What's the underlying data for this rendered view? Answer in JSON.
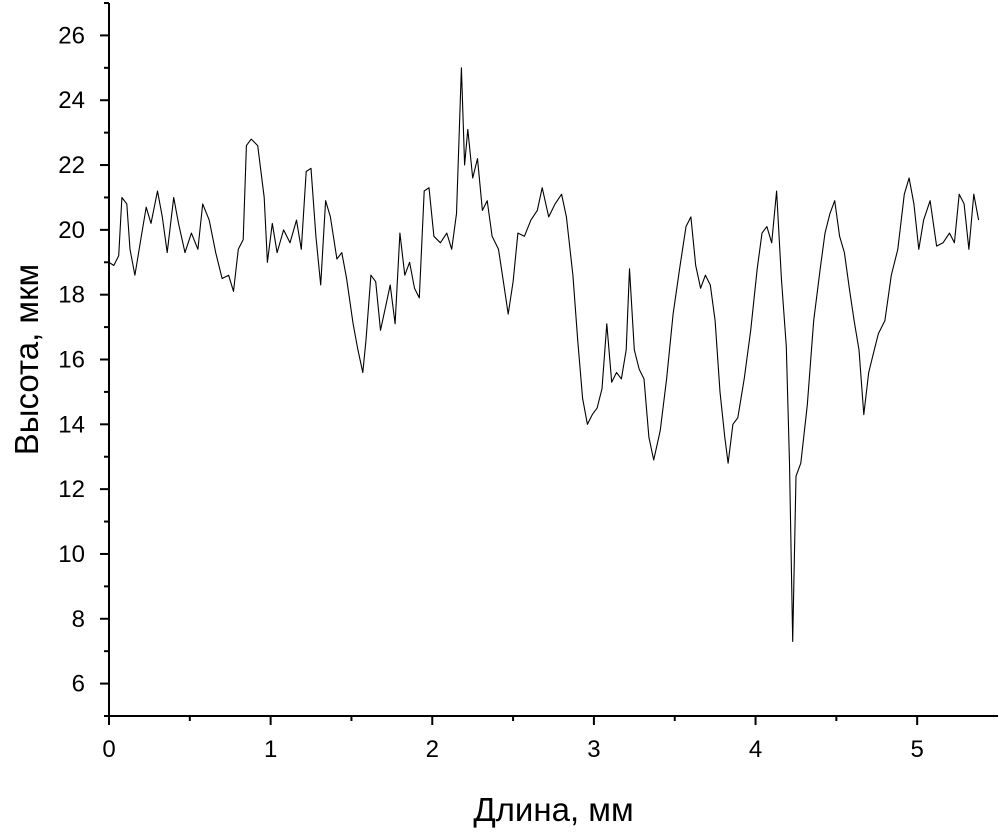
{
  "chart_data": {
    "type": "line",
    "title": "",
    "xlabel": "Длина, мм",
    "ylabel": "Высота, мкм",
    "xlim": [
      0,
      5.5
    ],
    "ylim": [
      5,
      27
    ],
    "x_ticks": [
      0,
      1,
      2,
      3,
      4,
      5
    ],
    "x_tick_labels": [
      "0",
      "1",
      "2",
      "3",
      "4",
      "5"
    ],
    "y_ticks": [
      6,
      8,
      10,
      12,
      14,
      16,
      18,
      20,
      22,
      24,
      26
    ],
    "y_tick_labels": [
      "6",
      "8",
      "10",
      "12",
      "14",
      "16",
      "18",
      "20",
      "22",
      "24",
      "26"
    ],
    "grid": false,
    "legend": "none",
    "line_color": "#000000",
    "series": [
      {
        "values": [
          [
            0.0,
            19.0
          ],
          [
            0.03,
            18.9
          ],
          [
            0.06,
            19.2
          ],
          [
            0.08,
            21.0
          ],
          [
            0.11,
            20.8
          ],
          [
            0.13,
            19.4
          ],
          [
            0.16,
            18.6
          ],
          [
            0.2,
            19.8
          ],
          [
            0.23,
            20.7
          ],
          [
            0.26,
            20.2
          ],
          [
            0.3,
            21.2
          ],
          [
            0.33,
            20.4
          ],
          [
            0.36,
            19.3
          ],
          [
            0.4,
            21.0
          ],
          [
            0.43,
            20.2
          ],
          [
            0.47,
            19.3
          ],
          [
            0.51,
            19.9
          ],
          [
            0.55,
            19.4
          ],
          [
            0.58,
            20.8
          ],
          [
            0.62,
            20.3
          ],
          [
            0.66,
            19.3
          ],
          [
            0.7,
            18.5
          ],
          [
            0.74,
            18.6
          ],
          [
            0.77,
            18.1
          ],
          [
            0.8,
            19.4
          ],
          [
            0.83,
            19.7
          ],
          [
            0.85,
            22.6
          ],
          [
            0.88,
            22.8
          ],
          [
            0.92,
            22.6
          ],
          [
            0.96,
            21.0
          ],
          [
            0.98,
            19.0
          ],
          [
            1.01,
            20.2
          ],
          [
            1.04,
            19.3
          ],
          [
            1.08,
            20.0
          ],
          [
            1.12,
            19.6
          ],
          [
            1.16,
            20.3
          ],
          [
            1.19,
            19.4
          ],
          [
            1.22,
            21.8
          ],
          [
            1.25,
            21.9
          ],
          [
            1.28,
            19.8
          ],
          [
            1.31,
            18.3
          ],
          [
            1.34,
            20.9
          ],
          [
            1.37,
            20.4
          ],
          [
            1.41,
            19.1
          ],
          [
            1.44,
            19.3
          ],
          [
            1.47,
            18.5
          ],
          [
            1.51,
            17.1
          ],
          [
            1.54,
            16.3
          ],
          [
            1.57,
            15.6
          ],
          [
            1.59,
            16.6
          ],
          [
            1.62,
            18.6
          ],
          [
            1.65,
            18.4
          ],
          [
            1.68,
            16.9
          ],
          [
            1.71,
            17.6
          ],
          [
            1.74,
            18.3
          ],
          [
            1.77,
            17.1
          ],
          [
            1.8,
            19.9
          ],
          [
            1.83,
            18.6
          ],
          [
            1.86,
            19.0
          ],
          [
            1.89,
            18.2
          ],
          [
            1.92,
            17.9
          ],
          [
            1.95,
            21.2
          ],
          [
            1.98,
            21.3
          ],
          [
            2.01,
            19.8
          ],
          [
            2.05,
            19.6
          ],
          [
            2.09,
            19.9
          ],
          [
            2.12,
            19.4
          ],
          [
            2.15,
            20.5
          ],
          [
            2.18,
            25.0
          ],
          [
            2.2,
            22.0
          ],
          [
            2.22,
            23.1
          ],
          [
            2.25,
            21.6
          ],
          [
            2.28,
            22.2
          ],
          [
            2.31,
            20.6
          ],
          [
            2.34,
            20.9
          ],
          [
            2.37,
            19.8
          ],
          [
            2.41,
            19.4
          ],
          [
            2.44,
            18.4
          ],
          [
            2.47,
            17.4
          ],
          [
            2.5,
            18.4
          ],
          [
            2.53,
            19.9
          ],
          [
            2.57,
            19.8
          ],
          [
            2.61,
            20.3
          ],
          [
            2.65,
            20.6
          ],
          [
            2.68,
            21.3
          ],
          [
            2.72,
            20.4
          ],
          [
            2.76,
            20.8
          ],
          [
            2.8,
            21.1
          ],
          [
            2.83,
            20.4
          ],
          [
            2.87,
            18.6
          ],
          [
            2.9,
            16.6
          ],
          [
            2.93,
            14.8
          ],
          [
            2.96,
            14.0
          ],
          [
            2.99,
            14.3
          ],
          [
            3.02,
            14.5
          ],
          [
            3.05,
            15.1
          ],
          [
            3.08,
            17.1
          ],
          [
            3.11,
            15.3
          ],
          [
            3.14,
            15.6
          ],
          [
            3.17,
            15.4
          ],
          [
            3.2,
            16.3
          ],
          [
            3.22,
            18.8
          ],
          [
            3.25,
            16.3
          ],
          [
            3.28,
            15.7
          ],
          [
            3.31,
            15.4
          ],
          [
            3.34,
            13.6
          ],
          [
            3.37,
            12.9
          ],
          [
            3.41,
            13.8
          ],
          [
            3.45,
            15.4
          ],
          [
            3.49,
            17.4
          ],
          [
            3.53,
            18.8
          ],
          [
            3.57,
            20.1
          ],
          [
            3.6,
            20.4
          ],
          [
            3.63,
            18.9
          ],
          [
            3.66,
            18.2
          ],
          [
            3.69,
            18.6
          ],
          [
            3.72,
            18.3
          ],
          [
            3.75,
            17.2
          ],
          [
            3.78,
            15.0
          ],
          [
            3.81,
            13.6
          ],
          [
            3.83,
            12.8
          ],
          [
            3.86,
            14.0
          ],
          [
            3.89,
            14.2
          ],
          [
            3.93,
            15.4
          ],
          [
            3.97,
            16.9
          ],
          [
            4.01,
            18.8
          ],
          [
            4.04,
            19.9
          ],
          [
            4.07,
            20.1
          ],
          [
            4.1,
            19.6
          ],
          [
            4.13,
            21.2
          ],
          [
            4.16,
            18.5
          ],
          [
            4.19,
            16.4
          ],
          [
            4.21,
            12.8
          ],
          [
            4.23,
            7.3
          ],
          [
            4.25,
            12.4
          ],
          [
            4.28,
            12.8
          ],
          [
            4.32,
            14.6
          ],
          [
            4.36,
            17.2
          ],
          [
            4.4,
            18.8
          ],
          [
            4.43,
            19.9
          ],
          [
            4.46,
            20.5
          ],
          [
            4.49,
            20.9
          ],
          [
            4.52,
            19.8
          ],
          [
            4.55,
            19.3
          ],
          [
            4.58,
            18.2
          ],
          [
            4.61,
            17.2
          ],
          [
            4.64,
            16.3
          ],
          [
            4.67,
            14.3
          ],
          [
            4.7,
            15.6
          ],
          [
            4.73,
            16.2
          ],
          [
            4.76,
            16.8
          ],
          [
            4.8,
            17.2
          ],
          [
            4.84,
            18.6
          ],
          [
            4.88,
            19.4
          ],
          [
            4.92,
            21.1
          ],
          [
            4.95,
            21.6
          ],
          [
            4.98,
            20.8
          ],
          [
            5.01,
            19.4
          ],
          [
            5.04,
            20.3
          ],
          [
            5.08,
            20.9
          ],
          [
            5.12,
            19.5
          ],
          [
            5.16,
            19.6
          ],
          [
            5.2,
            19.9
          ],
          [
            5.23,
            19.6
          ],
          [
            5.26,
            21.1
          ],
          [
            5.29,
            20.8
          ],
          [
            5.32,
            19.4
          ],
          [
            5.35,
            21.1
          ],
          [
            5.38,
            20.3
          ]
        ]
      }
    ]
  }
}
